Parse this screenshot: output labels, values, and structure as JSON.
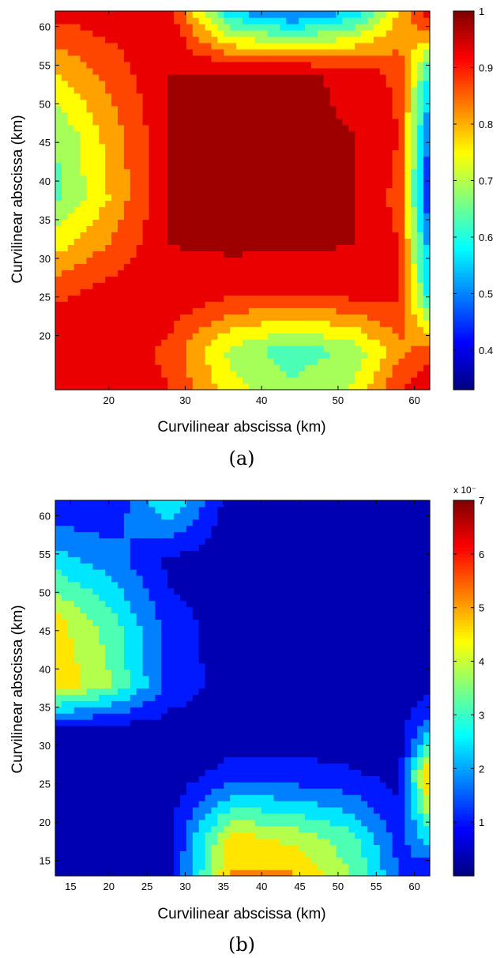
{
  "chart_data": [
    {
      "type": "heatmap",
      "caption": "(a)",
      "xlabel": "Curvilinear abscissa (km)",
      "ylabel": "Curvilinear abscissa (km)",
      "xlim": [
        13,
        62
      ],
      "ylim": [
        13,
        62
      ],
      "xticks": [
        20,
        30,
        40,
        50,
        60
      ],
      "yticks": [
        20,
        25,
        30,
        35,
        40,
        45,
        50,
        55,
        60
      ],
      "clim": [
        0.33,
        1.0
      ],
      "colorbar_ticks": [
        0.4,
        0.5,
        0.6,
        0.7,
        0.8,
        0.9,
        1
      ],
      "colormap": "jet",
      "grid_x": [
        13,
        20,
        28,
        36,
        44,
        52,
        58,
        62
      ],
      "grid_y": [
        13,
        18,
        26,
        32,
        38,
        46,
        54,
        62
      ],
      "z": [
        [
          0.96,
          0.96,
          0.9,
          0.74,
          0.68,
          0.73,
          0.9,
          0.96
        ],
        [
          0.96,
          0.95,
          0.88,
          0.7,
          0.62,
          0.68,
          0.82,
          0.88
        ],
        [
          0.88,
          0.92,
          0.95,
          0.93,
          0.92,
          0.94,
          0.92,
          0.55
        ],
        [
          0.75,
          0.84,
          0.96,
          0.97,
          0.97,
          0.96,
          0.9,
          0.5
        ],
        [
          0.64,
          0.78,
          0.96,
          0.97,
          0.97,
          0.96,
          0.88,
          0.4
        ],
        [
          0.66,
          0.8,
          0.96,
          0.97,
          0.97,
          0.96,
          0.9,
          0.45
        ],
        [
          0.78,
          0.86,
          0.96,
          0.97,
          0.97,
          0.95,
          0.88,
          0.58
        ],
        [
          0.92,
          0.94,
          0.93,
          0.55,
          0.45,
          0.55,
          0.78,
          0.95
        ]
      ],
      "levels": [
        0.36,
        0.42,
        0.48,
        0.54,
        0.6,
        0.66,
        0.72,
        0.78,
        0.84,
        0.9,
        0.96
      ]
    },
    {
      "type": "heatmap",
      "caption": "(b)",
      "xlabel": "Curvilinear abscissa (km)",
      "ylabel": "Curvilinear abscissa (km)",
      "xlim": [
        13,
        62
      ],
      "ylim": [
        13,
        62
      ],
      "xticks": [
        15,
        20,
        25,
        30,
        35,
        40,
        45,
        50,
        55,
        60
      ],
      "yticks": [
        15,
        20,
        25,
        30,
        35,
        40,
        45,
        50,
        55,
        60
      ],
      "clim": [
        0.0,
        7.0
      ],
      "colorbar_ticks": [
        1,
        2,
        3,
        4,
        5,
        6,
        7
      ],
      "colorbar_multiplier": "x 10⁻",
      "colormap": "jet",
      "grid_x": [
        13,
        20,
        28,
        36,
        44,
        52,
        58,
        62
      ],
      "grid_y": [
        13,
        18,
        26,
        32,
        38,
        46,
        54,
        62
      ],
      "z": [
        [
          0.3,
          0.3,
          0.5,
          5.0,
          5.0,
          3.5,
          1.5,
          0.5
        ],
        [
          0.3,
          0.3,
          0.5,
          4.5,
          4.0,
          3.0,
          1.0,
          2.5
        ],
        [
          0.3,
          0.3,
          0.3,
          1.0,
          1.0,
          0.8,
          0.5,
          5.5
        ],
        [
          0.3,
          0.3,
          0.3,
          0.3,
          0.3,
          0.3,
          0.3,
          2.0
        ],
        [
          4.8,
          3.6,
          1.2,
          0.3,
          0.3,
          0.3,
          0.3,
          0.3
        ],
        [
          4.5,
          3.2,
          1.0,
          0.3,
          0.3,
          0.3,
          0.3,
          0.3
        ],
        [
          2.5,
          1.8,
          0.5,
          0.3,
          0.3,
          0.3,
          0.3,
          0.3
        ],
        [
          0.6,
          0.8,
          2.8,
          0.3,
          0.3,
          0.3,
          0.3,
          0.3
        ]
      ],
      "levels": [
        0.7,
        1.4,
        2.1,
        2.8,
        3.5,
        4.2,
        4.9,
        5.6,
        6.3
      ]
    }
  ]
}
